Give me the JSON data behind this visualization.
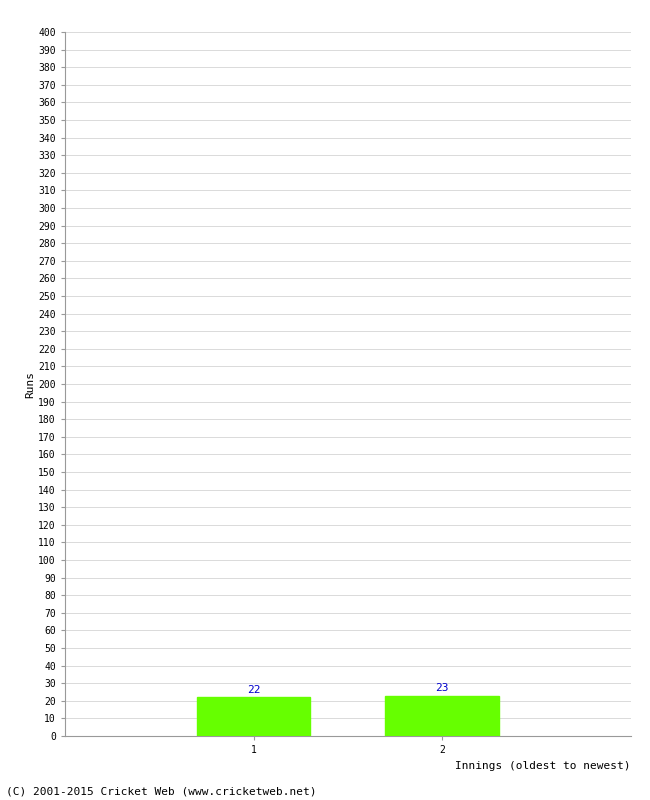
{
  "categories": [
    "1",
    "2"
  ],
  "values": [
    22,
    23
  ],
  "bar_color": "#66ff00",
  "bar_edge_color": "#66ff00",
  "ylabel": "Runs",
  "xlabel": "Innings (oldest to newest)",
  "ylim": [
    0,
    400
  ],
  "ytick_step": 10,
  "background_color": "#ffffff",
  "grid_color": "#cccccc",
  "label_color": "#0000cc",
  "footer": "(C) 2001-2015 Cricket Web (www.cricketweb.net)",
  "bar_width": 0.6,
  "tick_fontsize": 7,
  "axis_label_fontsize": 8,
  "footer_fontsize": 8
}
